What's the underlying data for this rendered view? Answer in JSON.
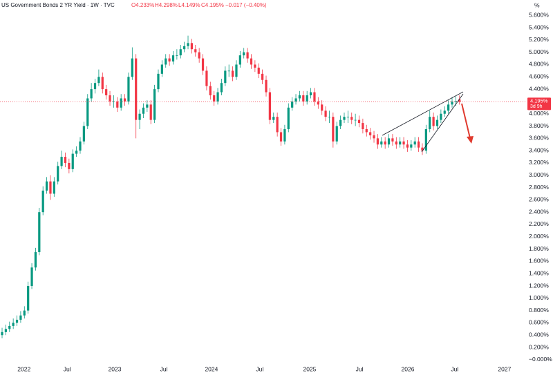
{
  "header": {
    "title": "US Government Bonds 2 YR Yield · 1W · TVC",
    "ohlc": [
      "O4.233%",
      "H4.298%",
      "L4.149%",
      "C4.195%"
    ],
    "change": "−0.017 (−0.40%)"
  },
  "chart_data": {
    "type": "candlestick",
    "unit": "%",
    "up_color": "#089981",
    "down_color": "#f23645",
    "xlim": [
      -0.56,
      140.7
    ],
    "ylim": [
      -0.08,
      5.85
    ],
    "grid": false,
    "xticks": [
      {
        "value": 5.9,
        "label": "2022"
      },
      {
        "value": 17.5,
        "label": "Jul"
      },
      {
        "value": 30.3,
        "label": "2023"
      },
      {
        "value": 43.5,
        "label": "Jul"
      },
      {
        "value": 56.3,
        "label": "2024"
      },
      {
        "value": 69.3,
        "label": "Jul"
      },
      {
        "value": 82.7,
        "label": "2025"
      },
      {
        "value": 96.1,
        "label": "Jul"
      },
      {
        "value": 109.1,
        "label": "2026"
      },
      {
        "value": 121.7,
        "label": "Jul"
      },
      {
        "value": 135.1,
        "label": "2027"
      }
    ],
    "yticks": [
      {
        "value": 0,
        "label": "−0.000%"
      },
      {
        "value": 0.2,
        "label": "0.200%"
      },
      {
        "value": 0.4,
        "label": "0.400%"
      },
      {
        "value": 0.6,
        "label": "0.600%"
      },
      {
        "value": 0.8,
        "label": "0.800%"
      },
      {
        "value": 1.0,
        "label": "1.000%"
      },
      {
        "value": 1.2,
        "label": "1.200%"
      },
      {
        "value": 1.4,
        "label": "1.400%"
      },
      {
        "value": 1.6,
        "label": "1.600%"
      },
      {
        "value": 1.8,
        "label": "1.800%"
      },
      {
        "value": 2.0,
        "label": "2.000%"
      },
      {
        "value": 2.2,
        "label": "2.200%"
      },
      {
        "value": 2.4,
        "label": "2.400%"
      },
      {
        "value": 2.6,
        "label": "2.600%"
      },
      {
        "value": 2.8,
        "label": "2.800%"
      },
      {
        "value": 3.0,
        "label": "3.000%"
      },
      {
        "value": 3.2,
        "label": "3.200%"
      },
      {
        "value": 3.4,
        "label": "3.400%"
      },
      {
        "value": 3.6,
        "label": "3.600%"
      },
      {
        "value": 3.8,
        "label": "3.800%"
      },
      {
        "value": 4.0,
        "label": "4.000%"
      },
      {
        "value": 4.4,
        "label": "4.400%"
      },
      {
        "value": 4.6,
        "label": "4.600%"
      },
      {
        "value": 4.8,
        "label": "4.800%"
      },
      {
        "value": 5.0,
        "label": "5.000%"
      },
      {
        "value": 5.2,
        "label": "5.200%"
      },
      {
        "value": 5.4,
        "label": "5.400%"
      },
      {
        "value": 5.6,
        "label": "5.600%"
      }
    ],
    "last": {
      "value": 4.195,
      "label": "4.195%",
      "countdown": "3d 9h"
    },
    "candles": [
      [
        0.4,
        0.52,
        0.35,
        0.45
      ],
      [
        0.45,
        0.57,
        0.4,
        0.5
      ],
      [
        0.5,
        0.62,
        0.45,
        0.55
      ],
      [
        0.55,
        0.67,
        0.5,
        0.6
      ],
      [
        0.6,
        0.72,
        0.55,
        0.65
      ],
      [
        0.65,
        0.79,
        0.6,
        0.72
      ],
      [
        0.72,
        0.87,
        0.67,
        0.8
      ],
      [
        0.8,
        1.27,
        0.75,
        1.2
      ],
      [
        1.2,
        1.57,
        1.15,
        1.5
      ],
      [
        1.5,
        1.82,
        1.45,
        1.75
      ],
      [
        1.75,
        2.47,
        1.7,
        2.4
      ],
      [
        2.4,
        2.82,
        2.35,
        2.75
      ],
      [
        2.75,
        2.97,
        2.7,
        2.9
      ],
      [
        2.9,
        3.0,
        2.6,
        2.7
      ],
      [
        2.7,
        2.97,
        2.65,
        2.9
      ],
      [
        2.9,
        3.22,
        2.85,
        3.15
      ],
      [
        3.15,
        3.4,
        3.1,
        3.3
      ],
      [
        3.3,
        3.37,
        3.13,
        3.2
      ],
      [
        3.2,
        3.27,
        3.03,
        3.1
      ],
      [
        3.1,
        3.42,
        3.05,
        3.35
      ],
      [
        3.35,
        3.47,
        3.3,
        3.4
      ],
      [
        3.4,
        3.62,
        3.35,
        3.55
      ],
      [
        3.55,
        3.87,
        3.5,
        3.8
      ],
      [
        3.8,
        4.32,
        3.75,
        4.25
      ],
      [
        4.25,
        4.5,
        4.2,
        4.4
      ],
      [
        4.4,
        4.57,
        4.33,
        4.5
      ],
      [
        4.5,
        4.72,
        4.45,
        4.6
      ],
      [
        4.6,
        4.67,
        4.33,
        4.4
      ],
      [
        4.4,
        4.47,
        4.23,
        4.3
      ],
      [
        4.3,
        4.37,
        4.13,
        4.2
      ],
      [
        4.2,
        4.3,
        4.1,
        4.2
      ],
      [
        4.2,
        4.27,
        4.03,
        4.1
      ],
      [
        4.1,
        4.32,
        4.05,
        4.25
      ],
      [
        4.25,
        4.32,
        4.13,
        4.2
      ],
      [
        4.2,
        4.67,
        4.15,
        4.6
      ],
      [
        4.6,
        5.08,
        4.55,
        4.9
      ],
      [
        4.9,
        4.97,
        3.6,
        3.9
      ],
      [
        3.9,
        4.07,
        3.75,
        4.0
      ],
      [
        4.0,
        4.17,
        3.93,
        4.1
      ],
      [
        4.1,
        4.22,
        4.03,
        4.15
      ],
      [
        4.15,
        4.22,
        3.83,
        3.9
      ],
      [
        3.9,
        4.47,
        3.85,
        4.4
      ],
      [
        4.4,
        4.72,
        4.35,
        4.65
      ],
      [
        4.65,
        4.87,
        4.6,
        4.8
      ],
      [
        4.8,
        4.97,
        4.75,
        4.9
      ],
      [
        4.9,
        4.97,
        4.78,
        4.85
      ],
      [
        4.85,
        5.02,
        4.8,
        4.95
      ],
      [
        4.95,
        5.05,
        4.88,
        4.95
      ],
      [
        4.95,
        5.12,
        4.9,
        5.05
      ],
      [
        5.05,
        5.17,
        5.0,
        5.1
      ],
      [
        5.1,
        5.27,
        5.05,
        5.15
      ],
      [
        5.15,
        5.22,
        4.98,
        5.05
      ],
      [
        5.05,
        5.12,
        4.93,
        5.0
      ],
      [
        5.0,
        5.07,
        4.83,
        4.9
      ],
      [
        4.9,
        4.97,
        4.63,
        4.7
      ],
      [
        4.7,
        4.77,
        4.38,
        4.45
      ],
      [
        4.45,
        4.52,
        4.23,
        4.3
      ],
      [
        4.3,
        4.37,
        4.13,
        4.2
      ],
      [
        4.2,
        4.42,
        4.15,
        4.35
      ],
      [
        4.35,
        4.57,
        4.3,
        4.5
      ],
      [
        4.5,
        4.77,
        4.45,
        4.7
      ],
      [
        4.7,
        4.8,
        4.6,
        4.7
      ],
      [
        4.7,
        4.77,
        4.53,
        4.6
      ],
      [
        4.6,
        4.87,
        4.55,
        4.8
      ],
      [
        4.8,
        5.02,
        4.75,
        4.95
      ],
      [
        4.95,
        5.07,
        4.9,
        5.0
      ],
      [
        5.0,
        5.07,
        4.83,
        4.9
      ],
      [
        4.9,
        4.97,
        4.73,
        4.8
      ],
      [
        4.8,
        4.87,
        4.68,
        4.75
      ],
      [
        4.75,
        4.82,
        4.58,
        4.65
      ],
      [
        4.65,
        4.72,
        4.48,
        4.55
      ],
      [
        4.55,
        4.62,
        4.28,
        4.35
      ],
      [
        4.35,
        4.42,
        3.83,
        3.9
      ],
      [
        3.9,
        4.02,
        3.85,
        3.95
      ],
      [
        3.95,
        4.02,
        3.63,
        3.7
      ],
      [
        3.7,
        3.77,
        3.48,
        3.55
      ],
      [
        3.55,
        3.82,
        3.5,
        3.75
      ],
      [
        3.75,
        4.17,
        3.7,
        4.1
      ],
      [
        4.1,
        4.27,
        4.05,
        4.2
      ],
      [
        4.2,
        4.32,
        4.15,
        4.25
      ],
      [
        4.25,
        4.37,
        4.2,
        4.3
      ],
      [
        4.3,
        4.37,
        4.13,
        4.2
      ],
      [
        4.2,
        4.37,
        4.15,
        4.3
      ],
      [
        4.3,
        4.42,
        4.25,
        4.35
      ],
      [
        4.35,
        4.42,
        4.13,
        4.2
      ],
      [
        4.2,
        4.27,
        4.08,
        4.15
      ],
      [
        4.15,
        4.22,
        3.98,
        4.05
      ],
      [
        4.05,
        4.12,
        3.88,
        3.95
      ],
      [
        3.95,
        4.05,
        3.85,
        3.95
      ],
      [
        3.95,
        4.02,
        3.45,
        3.55
      ],
      [
        3.55,
        3.87,
        3.5,
        3.8
      ],
      [
        3.8,
        3.97,
        3.75,
        3.9
      ],
      [
        3.9,
        4.02,
        3.85,
        3.95
      ],
      [
        3.95,
        4.05,
        3.85,
        3.95
      ],
      [
        3.95,
        4.02,
        3.83,
        3.9
      ],
      [
        3.9,
        4.0,
        3.8,
        3.9
      ],
      [
        3.9,
        3.97,
        3.78,
        3.85
      ],
      [
        3.85,
        3.92,
        3.68,
        3.75
      ],
      [
        3.75,
        3.82,
        3.63,
        3.7
      ],
      [
        3.7,
        3.77,
        3.58,
        3.65
      ],
      [
        3.65,
        3.72,
        3.53,
        3.6
      ],
      [
        3.6,
        3.67,
        3.43,
        3.5
      ],
      [
        3.5,
        3.62,
        3.45,
        3.55
      ],
      [
        3.55,
        3.62,
        3.43,
        3.5
      ],
      [
        3.5,
        3.67,
        3.45,
        3.6
      ],
      [
        3.6,
        3.67,
        3.48,
        3.55
      ],
      [
        3.55,
        3.62,
        3.43,
        3.5
      ],
      [
        3.5,
        3.62,
        3.45,
        3.55
      ],
      [
        3.55,
        3.62,
        3.43,
        3.5
      ],
      [
        3.5,
        3.57,
        3.38,
        3.45
      ],
      [
        3.45,
        3.57,
        3.4,
        3.5
      ],
      [
        3.5,
        3.62,
        3.45,
        3.55
      ],
      [
        3.55,
        3.62,
        3.38,
        3.45
      ],
      [
        3.45,
        3.52,
        3.33,
        3.4
      ],
      [
        3.4,
        3.82,
        3.35,
        3.75
      ],
      [
        3.75,
        4.05,
        3.7,
        3.95
      ],
      [
        3.95,
        4.02,
        3.73,
        3.8
      ],
      [
        3.8,
        3.97,
        3.75,
        3.9
      ],
      [
        3.9,
        4.07,
        3.85,
        4.0
      ],
      [
        4.0,
        4.12,
        3.95,
        4.05
      ],
      [
        4.05,
        4.22,
        4.0,
        4.15
      ],
      [
        4.15,
        4.27,
        4.1,
        4.2
      ],
      [
        4.2,
        4.28,
        4.13,
        4.21
      ],
      [
        4.233,
        4.298,
        4.149,
        4.195
      ]
    ]
  }
}
